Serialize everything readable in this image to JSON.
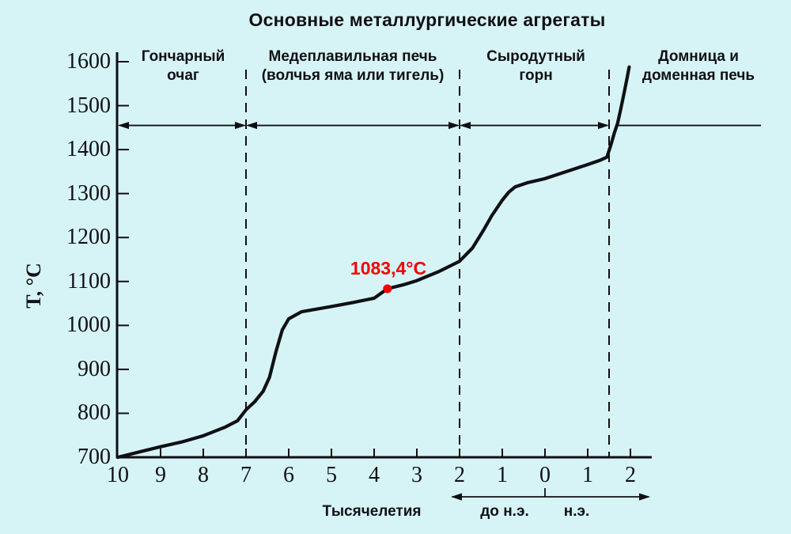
{
  "colors": {
    "background": "#d6f4f6",
    "ink": "#101014",
    "accent_red": "#f20000"
  },
  "chart_data": {
    "type": "line",
    "title": "Основные металлургические агрегаты",
    "xlabel": "Тысячелетия",
    "ylabel": "T, °C",
    "era_labels": {
      "bc": "до н.э.",
      "ad": "н.э."
    },
    "x_axis": {
      "tick_values": [
        -10,
        -9,
        -8,
        -7,
        -6,
        -5,
        -4,
        -3,
        -2,
        -1,
        0,
        1,
        2
      ],
      "tick_labels": [
        "10",
        "9",
        "8",
        "7",
        "6",
        "5",
        "4",
        "3",
        "2",
        "1",
        "0",
        "1",
        "2"
      ],
      "range": [
        -10,
        2.5
      ],
      "unit": "millennia (negative = BC, positive = AD)"
    },
    "y_axis": {
      "ticks": [
        700,
        800,
        900,
        1000,
        1100,
        1200,
        1300,
        1400,
        1500,
        1600
      ],
      "range": [
        700,
        1600
      ],
      "unit": "°C"
    },
    "grid": false,
    "legend": false,
    "regions": [
      {
        "label": "Гончарный очаг",
        "from": -10,
        "to": -7
      },
      {
        "label": "Медеплавильная печь (волчья яма или тигель)",
        "from": -7,
        "to": -2
      },
      {
        "label": "Сыродутный горн",
        "from": -2,
        "to": 1.5
      },
      {
        "label": "Домница и доменная печь",
        "from": 1.5,
        "to": 2.5
      }
    ],
    "dashed_lines_x": [
      -7,
      -2,
      1.5
    ],
    "arrow_row": {
      "temperature": 1455
    },
    "annotation": {
      "text": "1083,4°C",
      "x": -3.69,
      "y": 1083.4
    },
    "series": [
      {
        "name": "temperature-curve",
        "points": [
          [
            -10,
            700
          ],
          [
            -9.5,
            712
          ],
          [
            -9,
            724
          ],
          [
            -8.5,
            735
          ],
          [
            -8,
            749
          ],
          [
            -7.5,
            768
          ],
          [
            -7.2,
            783
          ],
          [
            -7,
            808
          ],
          [
            -6.8,
            826
          ],
          [
            -6.6,
            850
          ],
          [
            -6.45,
            882
          ],
          [
            -6.3,
            940
          ],
          [
            -6.15,
            990
          ],
          [
            -6,
            1015
          ],
          [
            -5.7,
            1031
          ],
          [
            -5,
            1043
          ],
          [
            -4.5,
            1052
          ],
          [
            -4,
            1062
          ],
          [
            -3.69,
            1083.4
          ],
          [
            -3.3,
            1093
          ],
          [
            -3,
            1102
          ],
          [
            -2.5,
            1122
          ],
          [
            -2,
            1146
          ],
          [
            -1.7,
            1176
          ],
          [
            -1.45,
            1215
          ],
          [
            -1.25,
            1249
          ],
          [
            -1,
            1285
          ],
          [
            -0.85,
            1303
          ],
          [
            -0.7,
            1315
          ],
          [
            -0.4,
            1325
          ],
          [
            0,
            1334
          ],
          [
            0.5,
            1350
          ],
          [
            1,
            1366
          ],
          [
            1.3,
            1376
          ],
          [
            1.45,
            1383
          ],
          [
            1.55,
            1413
          ],
          [
            1.62,
            1437
          ],
          [
            1.7,
            1460
          ],
          [
            1.78,
            1495
          ],
          [
            1.85,
            1528
          ],
          [
            1.92,
            1562
          ],
          [
            1.97,
            1588
          ]
        ]
      }
    ]
  }
}
